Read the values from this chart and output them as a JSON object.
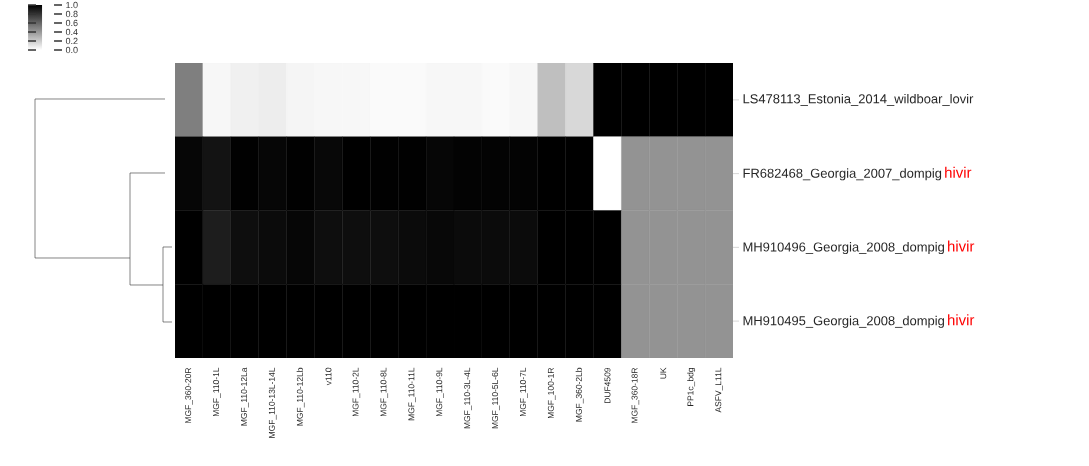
{
  "chart_data": {
    "type": "heatmap",
    "categories": [
      "MGF_360-20R",
      "MGF_110-1L",
      "MGF_110-12La",
      "MGF_110-13L-14L",
      "MGF_110-12Lb",
      "v110",
      "MGF_110-2L",
      "MGF_110-8L",
      "MGF_110-11L",
      "MGF_110-9L",
      "MGF_110-3L-4L",
      "MGF_110-5L-6L",
      "MGF_110-7L",
      "MGF_100-1R",
      "MGF_360-2Lb",
      "DUF4509",
      "MGF_360-18R",
      "UK",
      "PP1c_bdg",
      "ASFV_L11L"
    ],
    "y_categories": [
      "LS478113_Estonia_2014_wildboar_lovir",
      "FR682468_Georgia_2007_dompig",
      "MH910496_Georgia_2008_dompig",
      "MH910495_Georgia_2008_dompig"
    ],
    "y2_categories": [
      null,
      "hivir",
      "hivir",
      "hivir"
    ],
    "cells": [
      [
        0.5,
        0.03,
        0.06,
        0.07,
        0.04,
        0.03,
        0.03,
        0.02,
        0.02,
        0.03,
        0.03,
        0.02,
        0.03,
        0.25,
        0.15,
        1,
        1,
        1,
        1,
        1
      ],
      [
        0.97,
        0.92,
        0.99,
        0.97,
        0.99,
        0.96,
        1,
        0.99,
        0.99,
        0.97,
        0.98,
        0.98,
        0.98,
        1,
        1,
        0,
        0.42,
        0.42,
        0.42,
        0.42
      ],
      [
        1,
        0.88,
        0.94,
        0.95,
        0.97,
        0.94,
        0.94,
        0.94,
        0.95,
        0.96,
        0.95,
        0.95,
        0.95,
        1,
        1,
        1,
        0.42,
        0.42,
        0.42,
        0.42
      ],
      [
        1,
        1,
        1,
        1,
        1,
        1,
        1,
        1,
        1,
        1,
        1,
        1,
        1,
        1,
        1,
        1,
        0.42,
        0.42,
        0.42,
        0.42
      ]
    ],
    "clim": [
      0,
      1
    ],
    "cticks": [
      {
        "value": 0,
        "label": "0.0"
      },
      {
        "value": 0.2,
        "label": "0.2"
      },
      {
        "value": 0.4,
        "label": "0.4"
      },
      {
        "value": 0.6,
        "label": "0.6"
      },
      {
        "value": 0.8,
        "label": "0.8"
      },
      {
        "value": 1,
        "label": "1.0"
      }
    ]
  }
}
